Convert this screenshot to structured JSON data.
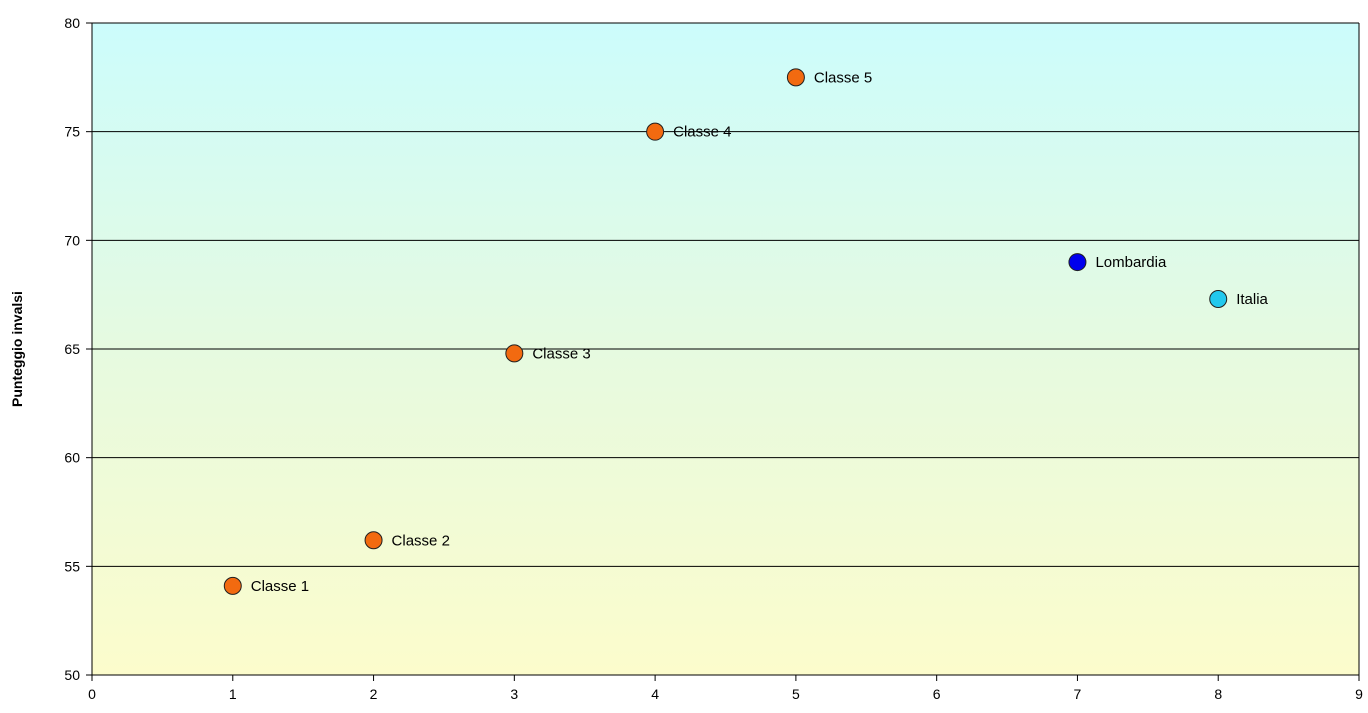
{
  "chart_data": {
    "type": "scatter",
    "ylabel": "Punteggio invalsi",
    "xlabel": "",
    "xlim": [
      0,
      9
    ],
    "ylim": [
      50,
      80
    ],
    "x_ticks": [
      "0",
      "1",
      "2",
      "3",
      "4",
      "5",
      "6",
      "7",
      "8",
      "9"
    ],
    "y_ticks": [
      "50",
      "55",
      "60",
      "65",
      "70",
      "75",
      "80"
    ],
    "grid": "horizontal",
    "background": "gradient from light cyan (top) to light yellow (bottom)",
    "points": [
      {
        "label": "Classe 1",
        "x": 1,
        "y": 54.1,
        "color": "#f26a10"
      },
      {
        "label": "Classe 2",
        "x": 2,
        "y": 56.2,
        "color": "#f26a10"
      },
      {
        "label": "Classe 3",
        "x": 3,
        "y": 64.8,
        "color": "#f26a10"
      },
      {
        "label": "Classe 4",
        "x": 4,
        "y": 75.0,
        "color": "#f26a10"
      },
      {
        "label": "Classe 5",
        "x": 5,
        "y": 77.5,
        "color": "#f26a10"
      },
      {
        "label": "Lombardia",
        "x": 7,
        "y": 69.0,
        "color": "#0000ee"
      },
      {
        "label": "Italia",
        "x": 8,
        "y": 67.3,
        "color": "#22c8ee"
      }
    ]
  }
}
